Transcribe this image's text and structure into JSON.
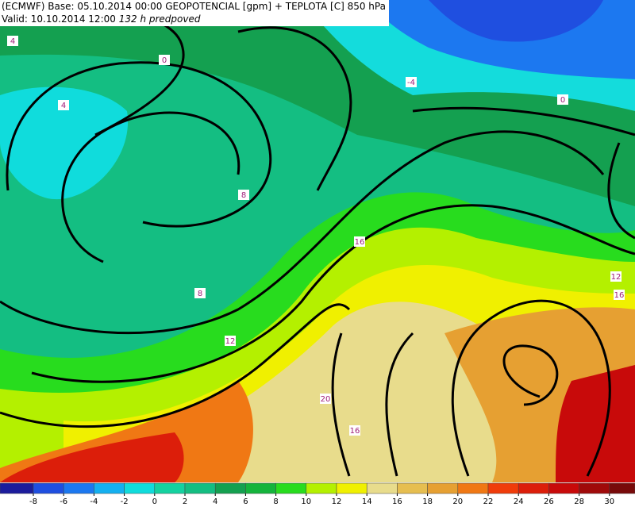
{
  "header": {
    "line1": "(ECMWF) Base: 05.10.2014 00:00 GEOPOTENCIAL [gpm] + TEPLOTA [C] 850 hPa",
    "valid": "Valid: 10.10.2014 12:00",
    "lead": "132 h predpoved"
  },
  "map_labels": [
    4,
    0,
    4,
    -4,
    0,
    8,
    16,
    8,
    12,
    12,
    16,
    20,
    16
  ],
  "colorbar": {
    "ticks": [
      -8,
      -6,
      -4,
      -2,
      0,
      2,
      4,
      6,
      8,
      10,
      12,
      14,
      16,
      18,
      20,
      22,
      24,
      26,
      28,
      30
    ],
    "colors": [
      "#1c1c9c",
      "#1f4fe0",
      "#1c78f0",
      "#14b0f0",
      "#10dcdc",
      "#14d2a0",
      "#14be82",
      "#14a050",
      "#14b43c",
      "#28dc1e",
      "#b4f000",
      "#f0f000",
      "#e8dc8c",
      "#e6be50",
      "#e6a032",
      "#f07814",
      "#f03c0a",
      "#dc1e0a",
      "#c80a0a",
      "#a00a0a",
      "#780a0a"
    ]
  }
}
